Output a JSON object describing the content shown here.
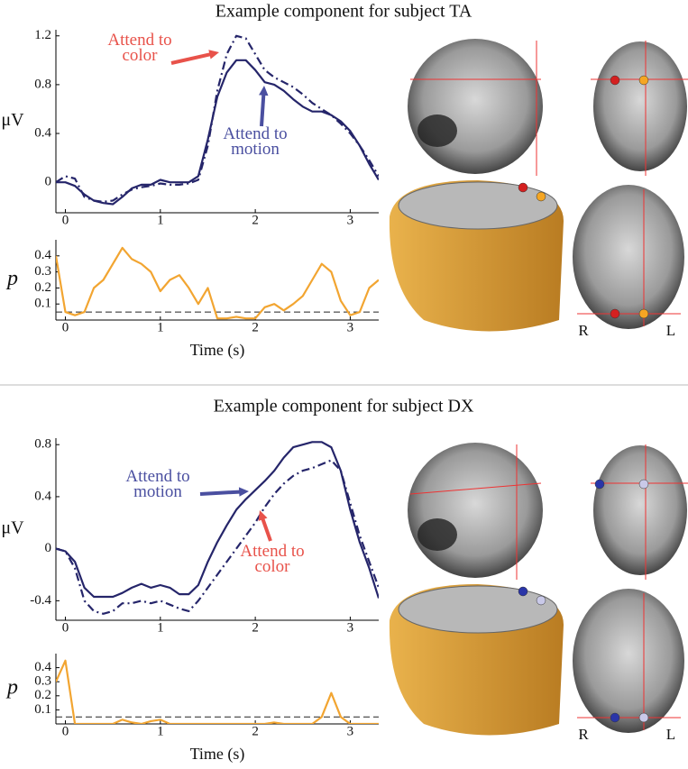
{
  "panels": [
    {
      "title": "Example component for subject TA",
      "side_labels": [
        "R",
        "L"
      ]
    },
    {
      "title": "Example component for subject DX",
      "side_labels": [
        "R",
        "L"
      ]
    }
  ],
  "chart_data": [
    {
      "type": "line",
      "ylabel": "μV",
      "x": [
        -0.1,
        0,
        0.1,
        0.2,
        0.3,
        0.4,
        0.5,
        0.6,
        0.7,
        0.8,
        0.9,
        1,
        1.1,
        1.2,
        1.3,
        1.4,
        1.5,
        1.6,
        1.7,
        1.8,
        1.9,
        2,
        2.1,
        2.2,
        2.3,
        2.4,
        2.5,
        2.6,
        2.7,
        2.8,
        2.9,
        3,
        3.1,
        3.2,
        3.3
      ],
      "xlim": [
        -0.1,
        3.3
      ],
      "xticks": [
        0,
        1,
        2,
        3
      ],
      "ylim": [
        -0.25,
        1.25
      ],
      "yticks": [
        0,
        0.4,
        0.8,
        1.2
      ],
      "series": [
        {
          "name": "Attend to color",
          "color": "#25256a",
          "dash": "dashdot",
          "label_color": "#e8524a",
          "values": [
            0,
            0.05,
            0.03,
            -0.12,
            -0.15,
            -0.16,
            -0.15,
            -0.1,
            -0.06,
            -0.04,
            -0.03,
            -0.01,
            -0.02,
            -0.02,
            -0.01,
            0.02,
            0.3,
            0.75,
            1.05,
            1.2,
            1.18,
            1.05,
            0.92,
            0.86,
            0.82,
            0.78,
            0.72,
            0.65,
            0.6,
            0.55,
            0.48,
            0.4,
            0.3,
            0.18,
            0.05
          ]
        },
        {
          "name": "Attend to motion",
          "color": "#25256a",
          "dash": "solid",
          "label_color": "#4a4fa0",
          "values": [
            0,
            0,
            -0.03,
            -0.1,
            -0.15,
            -0.17,
            -0.18,
            -0.12,
            -0.05,
            -0.02,
            -0.02,
            0.02,
            0,
            0,
            0,
            0.05,
            0.35,
            0.7,
            0.9,
            1,
            1,
            0.92,
            0.82,
            0.8,
            0.75,
            0.68,
            0.62,
            0.58,
            0.58,
            0.55,
            0.5,
            0.42,
            0.3,
            0.15,
            0.02
          ]
        }
      ]
    },
    {
      "type": "line",
      "ylabel": "p",
      "xlabel": "Time (s)",
      "x": [
        -0.1,
        0,
        0.1,
        0.2,
        0.3,
        0.4,
        0.5,
        0.6,
        0.7,
        0.8,
        0.9,
        1,
        1.1,
        1.2,
        1.3,
        1.4,
        1.5,
        1.6,
        1.7,
        1.8,
        1.9,
        2,
        2.1,
        2.2,
        2.3,
        2.4,
        2.5,
        2.6,
        2.7,
        2.8,
        2.9,
        3,
        3.1,
        3.2,
        3.3
      ],
      "xlim": [
        -0.1,
        3.3
      ],
      "xticks": [
        0,
        1,
        2,
        3
      ],
      "ylim": [
        0,
        0.5
      ],
      "yticks": [
        0.1,
        0.2,
        0.3,
        0.4
      ],
      "hlines": [
        0.05
      ],
      "series": [
        {
          "color": "#f2a531",
          "values": [
            0.4,
            0.05,
            0.03,
            0.05,
            0.2,
            0.25,
            0.35,
            0.45,
            0.38,
            0.35,
            0.3,
            0.18,
            0.25,
            0.28,
            0.2,
            0.1,
            0.2,
            0.01,
            0.01,
            0.02,
            0.01,
            0.01,
            0.08,
            0.1,
            0.06,
            0.1,
            0.15,
            0.25,
            0.35,
            0.3,
            0.12,
            0.03,
            0.05,
            0.2,
            0.25
          ]
        }
      ]
    },
    {
      "type": "line",
      "ylabel": "μV",
      "x": [
        -0.1,
        0,
        0.1,
        0.2,
        0.3,
        0.4,
        0.5,
        0.6,
        0.7,
        0.8,
        0.9,
        1,
        1.1,
        1.2,
        1.3,
        1.4,
        1.5,
        1.6,
        1.7,
        1.8,
        1.9,
        2,
        2.1,
        2.2,
        2.3,
        2.4,
        2.5,
        2.6,
        2.7,
        2.8,
        2.9,
        3,
        3.1,
        3.2,
        3.3
      ],
      "xlim": [
        -0.1,
        3.3
      ],
      "xticks": [
        0,
        1,
        2,
        3
      ],
      "ylim": [
        -0.55,
        0.85
      ],
      "yticks": [
        -0.4,
        0,
        0.4,
        0.8
      ],
      "series": [
        {
          "name": "Attend to motion",
          "color": "#25256a",
          "dash": "solid",
          "label_color": "#4a4fa0",
          "values": [
            0,
            -0.02,
            -0.1,
            -0.3,
            -0.37,
            -0.37,
            -0.37,
            -0.34,
            -0.3,
            -0.27,
            -0.3,
            -0.28,
            -0.3,
            -0.35,
            -0.35,
            -0.28,
            -0.1,
            0.05,
            0.18,
            0.3,
            0.38,
            0.45,
            0.52,
            0.6,
            0.7,
            0.78,
            0.8,
            0.82,
            0.82,
            0.78,
            0.6,
            0.3,
            0.05,
            -0.15,
            -0.38
          ]
        },
        {
          "name": "Attend to color",
          "color": "#25256a",
          "dash": "dashdot",
          "label_color": "#e8524a",
          "values": [
            0,
            -0.02,
            -0.15,
            -0.4,
            -0.48,
            -0.5,
            -0.48,
            -0.42,
            -0.42,
            -0.4,
            -0.42,
            -0.4,
            -0.43,
            -0.46,
            -0.48,
            -0.4,
            -0.3,
            -0.2,
            -0.1,
            0,
            0.1,
            0.2,
            0.32,
            0.42,
            0.5,
            0.56,
            0.6,
            0.62,
            0.65,
            0.68,
            0.6,
            0.35,
            0.1,
            -0.1,
            -0.3
          ]
        }
      ]
    },
    {
      "type": "line",
      "ylabel": "p",
      "xlabel": "Time (s)",
      "x": [
        -0.1,
        0,
        0.1,
        0.2,
        0.3,
        0.4,
        0.5,
        0.6,
        0.7,
        0.8,
        0.9,
        1,
        1.1,
        1.2,
        1.3,
        1.4,
        1.5,
        1.6,
        1.7,
        1.8,
        1.9,
        2,
        2.1,
        2.2,
        2.3,
        2.4,
        2.5,
        2.6,
        2.7,
        2.8,
        2.9,
        3,
        3.1,
        3.2,
        3.3
      ],
      "xlim": [
        -0.1,
        3.3
      ],
      "xticks": [
        0,
        1,
        2,
        3
      ],
      "ylim": [
        0,
        0.5
      ],
      "yticks": [
        0.1,
        0.2,
        0.3,
        0.4
      ],
      "hlines": [
        0.05
      ],
      "series": [
        {
          "color": "#f2a531",
          "values": [
            0.3,
            0.45,
            0,
            0,
            0,
            0,
            0,
            0.03,
            0.01,
            0,
            0.02,
            0.03,
            0,
            0,
            0,
            0,
            0,
            0,
            0,
            0,
            0,
            0,
            0,
            0.01,
            0,
            0,
            0,
            0,
            0.05,
            0.22,
            0.05,
            0,
            0,
            0,
            0
          ]
        }
      ]
    }
  ]
}
